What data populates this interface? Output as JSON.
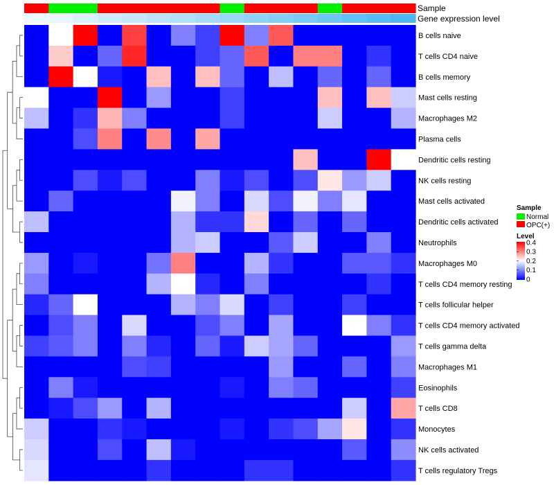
{
  "chart_data": {
    "type": "heatmap",
    "title": "",
    "rows": [
      "B cells naive",
      "T cells CD4 naive",
      "B cells memory",
      "Mast cells resting",
      "Macrophages M2",
      "Plasma cells",
      "Dendritic cells resting",
      "NK cells resting",
      "Mast cells activated",
      "Dendritic cells activated",
      "Neutrophils",
      "Macrophages M0",
      "T cells CD4 memory resting",
      "T cells follicular helper",
      "T cells CD4 memory activated",
      "T cells gamma delta",
      "Macrophages M1",
      "Eosinophils",
      "T cells CD8",
      "Monocytes",
      "NK cells activated",
      "T cells regulatory  Tregs"
    ],
    "sample_groups": [
      "OPC(+)",
      "Normal",
      "Normal",
      "OPC(+)",
      "OPC(+)",
      "OPC(+)",
      "OPC(+)",
      "OPC(+)",
      "Normal",
      "OPC(+)",
      "OPC(+)",
      "OPC(+)",
      "Normal",
      "OPC(+)",
      "OPC(+)",
      "OPC(+)"
    ],
    "gene_expression_level": [
      0.02,
      0.03,
      0.05,
      0.07,
      0.09,
      0.11,
      0.13,
      0.15,
      0.17,
      0.19,
      0.21,
      0.23,
      0.25,
      0.27,
      0.29,
      0.31
    ],
    "values": [
      [
        0,
        0.2,
        0.4,
        0,
        0.35,
        0,
        0.1,
        0.05,
        0.4,
        0.1,
        0.33,
        0,
        0,
        0,
        0,
        0
      ],
      [
        0,
        0.24,
        0,
        0.08,
        0.37,
        0,
        0,
        0.05,
        0.08,
        0.33,
        0,
        0.3,
        0.3,
        0,
        0.04,
        0
      ],
      [
        0,
        0.4,
        0.2,
        0.02,
        0,
        0.25,
        0,
        0.25,
        0.08,
        0,
        0.15,
        0,
        0.08,
        0,
        0.08,
        0
      ],
      [
        0.2,
        0,
        0,
        0.4,
        0,
        0.12,
        0,
        0,
        0.05,
        0,
        0,
        0,
        0.25,
        0,
        0.25,
        0.16
      ],
      [
        0.15,
        0,
        0.04,
        0.26,
        0.1,
        0,
        0,
        0,
        0.05,
        0,
        0,
        0,
        0.16,
        0,
        0,
        0.14
      ],
      [
        0,
        0,
        0.06,
        0.3,
        0,
        0.29,
        0,
        0.27,
        0,
        0,
        0,
        0,
        0,
        0,
        0,
        0
      ],
      [
        0,
        0,
        0,
        0,
        0,
        0,
        0,
        0,
        0,
        0,
        0,
        0.25,
        0,
        0,
        0.4,
        0.2
      ],
      [
        0,
        0,
        0.06,
        0.02,
        0.06,
        0,
        0,
        0.1,
        0.02,
        0.06,
        0,
        0.06,
        0.22,
        0.12,
        0.16,
        0
      ],
      [
        0,
        0.08,
        0,
        0,
        0,
        0,
        0.19,
        0.1,
        0,
        0.17,
        0.06,
        0.19,
        0.1,
        0.18,
        0,
        0
      ],
      [
        0.15,
        0,
        0,
        0,
        0,
        0,
        0.14,
        0.04,
        0.04,
        0.23,
        0,
        0.08,
        0,
        0.08,
        0,
        0
      ],
      [
        0,
        0,
        0,
        0,
        0,
        0,
        0.14,
        0.16,
        0,
        0,
        0.07,
        0.16,
        0,
        0,
        0.1,
        0
      ],
      [
        0.12,
        0,
        0.02,
        0,
        0,
        0.09,
        0.3,
        0,
        0,
        0.14,
        0.04,
        0,
        0,
        0.07,
        0.07,
        0.04
      ],
      [
        0.1,
        0,
        0,
        0,
        0,
        0.14,
        0.2,
        0.03,
        0,
        0.1,
        0,
        0,
        0,
        0,
        0.04,
        0
      ],
      [
        0.03,
        0.08,
        0.2,
        0,
        0,
        0,
        0.14,
        0.1,
        0.17,
        0,
        0.05,
        0,
        0,
        0.05,
        0,
        0
      ],
      [
        0,
        0.06,
        0.1,
        0,
        0.17,
        0,
        0,
        0.06,
        0.1,
        0,
        0.13,
        0,
        0,
        0.2,
        0.1,
        0.04
      ],
      [
        0.05,
        0.07,
        0.1,
        0,
        0.1,
        0.03,
        0,
        0.08,
        0.02,
        0.16,
        0.13,
        0.08,
        0,
        0,
        0,
        0.12
      ],
      [
        0,
        0,
        0,
        0,
        0.06,
        0.05,
        0,
        0,
        0,
        0,
        0.12,
        0,
        0,
        0.08,
        0,
        0.1
      ],
      [
        0,
        0.1,
        0.02,
        0,
        0,
        0,
        0,
        0,
        0.02,
        0,
        0.1,
        0.08,
        0,
        0,
        0,
        0.05
      ],
      [
        0,
        0.02,
        0.06,
        0.12,
        0,
        0.14,
        0,
        0,
        0,
        0,
        0,
        0,
        0,
        0.16,
        0,
        0.27
      ],
      [
        0.16,
        0,
        0,
        0.04,
        0.02,
        0,
        0,
        0,
        0.02,
        0,
        0.04,
        0.06,
        0.13,
        0.22,
        0,
        0.04
      ],
      [
        0.17,
        0,
        0,
        0.06,
        0,
        0.15,
        0.02,
        0,
        0,
        0,
        0,
        0,
        0,
        0.07,
        0,
        0.11
      ],
      [
        0.18,
        0,
        0,
        0,
        0,
        0.04,
        0,
        0,
        0,
        0.04,
        0.04,
        0,
        0,
        0,
        0,
        0.04
      ]
    ],
    "annotation_labels": [
      "Sample",
      "Gene expression level"
    ],
    "legend": {
      "sample_title": "Sample",
      "sample_items": [
        {
          "label": "Normal",
          "color": "#00ee00"
        },
        {
          "label": "OPC(+)",
          "color": "#ff0000"
        }
      ],
      "level_title": "Level",
      "level_ticks": [
        "0.4",
        "0.3",
        "0.2",
        "0.1",
        "0"
      ],
      "level_range": [
        0,
        0.4
      ]
    },
    "colors": {
      "low": "#0000ff",
      "mid": "#ffffff",
      "high": "#ff0000",
      "normal": "#00ee00",
      "opc": "#ff0000"
    }
  }
}
